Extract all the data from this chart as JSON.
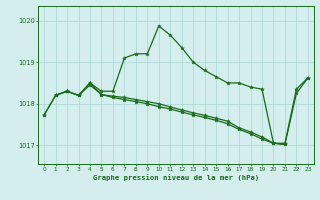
{
  "color": "#1a6b1a",
  "bg_color": "#d4eeee",
  "grid_color": "#aad4d4",
  "ylim_min": 1016.55,
  "ylim_max": 1020.35,
  "yticks": [
    1017,
    1018,
    1019,
    1020
  ],
  "xlim_min": -0.5,
  "xlim_max": 23.5,
  "xlabel": "Graphe pression niveau de la mer (hPa)",
  "line_up_x": [
    1,
    2,
    3,
    4,
    5,
    6,
    7,
    8,
    9,
    10,
    11,
    12,
    13,
    14,
    15,
    16,
    17,
    18,
    19,
    20,
    21,
    22,
    23
  ],
  "line_up_y": [
    1018.2,
    1018.3,
    1018.2,
    1018.5,
    1018.3,
    1018.3,
    1019.1,
    1019.2,
    1019.2,
    1019.87,
    1019.65,
    1019.35,
    1019.0,
    1018.8,
    1018.65,
    1018.5,
    1018.5,
    1018.4,
    1018.35,
    1017.05,
    1017.05,
    1018.35,
    1018.62
  ],
  "line_diag_x": [
    0,
    1,
    2,
    3,
    4,
    5,
    6,
    7,
    8,
    9,
    10,
    11,
    12,
    13,
    14,
    15,
    16,
    17,
    18,
    19,
    20,
    21,
    22,
    23
  ],
  "line_diag_y": [
    1017.73,
    1018.2,
    1018.3,
    1018.2,
    1018.5,
    1018.22,
    1018.18,
    1018.15,
    1018.1,
    1018.05,
    1018.0,
    1017.92,
    1017.85,
    1017.78,
    1017.72,
    1017.65,
    1017.58,
    1017.42,
    1017.32,
    1017.2,
    1017.05,
    1017.02,
    1018.25,
    1018.62
  ],
  "line_bot_x": [
    0,
    1,
    2,
    3,
    4,
    5,
    6,
    7,
    8,
    9,
    10,
    11,
    12,
    13,
    14,
    15,
    16,
    17,
    18,
    19,
    20,
    21
  ],
  "line_bot_y": [
    1017.73,
    1018.2,
    1018.3,
    1018.2,
    1018.45,
    1018.22,
    1018.15,
    1018.1,
    1018.05,
    1018.0,
    1017.93,
    1017.87,
    1017.8,
    1017.73,
    1017.67,
    1017.6,
    1017.52,
    1017.38,
    1017.28,
    1017.15,
    1017.05,
    1017.02
  ]
}
